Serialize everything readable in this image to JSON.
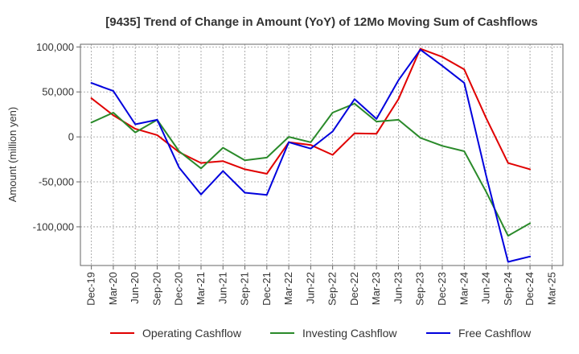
{
  "chart_data": {
    "type": "line",
    "title": "[9435]  Trend of Change in Amount (YoY) of 12Mo Moving Sum of Cashflows",
    "xlabel": "",
    "ylabel": "Amount (million yen)",
    "ylim": [
      -143000,
      103000
    ],
    "yticks": [
      100000,
      50000,
      0,
      -50000,
      -100000
    ],
    "ytick_labels": [
      "100,000",
      "50,000",
      "0",
      "-50,000",
      "-100,000"
    ],
    "grid": true,
    "legend_position": "bottom",
    "categories": [
      "Dec-19",
      "Mar-20",
      "Jun-20",
      "Sep-20",
      "Dec-20",
      "Mar-21",
      "Jun-21",
      "Sep-21",
      "Dec-21",
      "Mar-22",
      "Jun-22",
      "Sep-22",
      "Dec-22",
      "Mar-23",
      "Jun-23",
      "Sep-23",
      "Dec-23",
      "Mar-24",
      "Jun-24",
      "Sep-24",
      "Dec-24",
      "Mar-25"
    ],
    "series": [
      {
        "name": "Operating Cashflow",
        "color": "#e00000",
        "values": [
          43000,
          24000,
          9000,
          2000,
          -17000,
          -29000,
          -27000,
          -36000,
          -41000,
          -6000,
          -9000,
          -20000,
          4000,
          3500,
          42000,
          98000,
          89000,
          75000,
          21000,
          -29000,
          -36000,
          null
        ]
      },
      {
        "name": "Investing Cashflow",
        "color": "#2a8a2a",
        "values": [
          16000,
          27000,
          5000,
          19000,
          -16000,
          -35000,
          -12000,
          -26000,
          -23000,
          0,
          -6000,
          27000,
          37000,
          17000,
          19000,
          -1000,
          -10000,
          -16000,
          -61000,
          -110000,
          -96000,
          null
        ]
      },
      {
        "name": "Free Cashflow",
        "color": "#0000dd",
        "values": [
          60000,
          51000,
          14000,
          19000,
          -34000,
          -64000,
          -38000,
          -62000,
          -64500,
          -6000,
          -13000,
          6000,
          42000,
          20000,
          63000,
          97000,
          79000,
          60000,
          -43000,
          -139000,
          -133000,
          null
        ]
      }
    ]
  }
}
